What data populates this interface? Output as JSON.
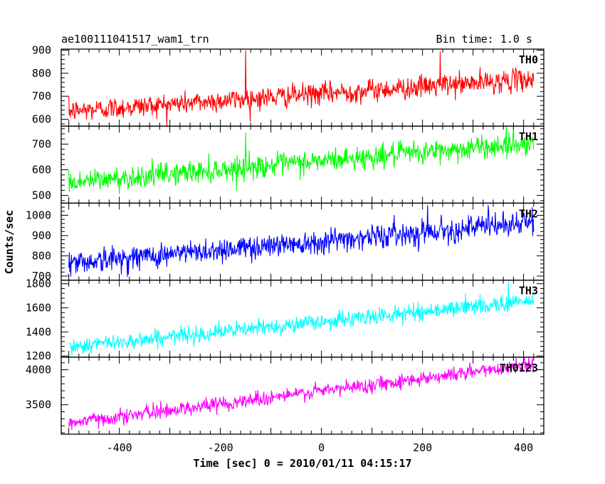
{
  "chart_data": {
    "type": "line",
    "title": "ae100111041517_wam1_trn",
    "subtitle": "Bin time: 1.0 s",
    "xlabel": "Time [sec] 0 = 2010/01/11 04:15:17",
    "ylabel": "Counts/sec",
    "xlim": [
      -515,
      440
    ],
    "xticks": [
      -400,
      -200,
      0,
      200,
      400
    ],
    "x_start": -500,
    "x_end": 420,
    "x_step": 1,
    "grid": false,
    "panels": [
      {
        "name": "TH0",
        "color": "#ff0000",
        "ylim": [
          570,
          905
        ],
        "yticks": [
          600,
          700,
          800,
          900
        ],
        "trend_start": 635,
        "trend_end": 775,
        "noise_amplitude": 32,
        "spikes": [
          {
            "x": -150,
            "y": 900
          },
          {
            "x": 235,
            "y": 895
          }
        ]
      },
      {
        "name": "TH1",
        "color": "#00ff00",
        "ylim": [
          470,
          770
        ],
        "yticks": [
          500,
          600,
          700
        ],
        "trend_start": 550,
        "trend_end": 705,
        "noise_amplitude": 30,
        "spikes": [
          {
            "x": -150,
            "y": 745
          },
          {
            "x": 380,
            "y": 765
          }
        ]
      },
      {
        "name": "TH2",
        "color": "#0000ff",
        "ylim": [
          680,
          1060
        ],
        "yticks": [
          700,
          800,
          900,
          1000
        ],
        "trend_start": 765,
        "trend_end": 965,
        "noise_amplitude": 40,
        "spikes": [
          {
            "x": 210,
            "y": 1050
          },
          {
            "x": 330,
            "y": 1050
          }
        ]
      },
      {
        "name": "TH3",
        "color": "#00ffff",
        "ylim": [
          1190,
          1830
        ],
        "yticks": [
          1200,
          1400,
          1600,
          1800
        ],
        "trend_start": 1275,
        "trend_end": 1660,
        "noise_amplitude": 45,
        "spikes": [
          {
            "x": 370,
            "y": 1820
          },
          {
            "x": 285,
            "y": 1720
          }
        ]
      },
      {
        "name": "TH0123",
        "color": "#ff00ff",
        "ylim": [
          3080,
          4180
        ],
        "yticks": [
          3500,
          4000
        ],
        "trend_start": 3240,
        "trend_end": 4080,
        "noise_amplitude": 70,
        "spikes": [
          {
            "x": -130,
            "y": 3700
          },
          {
            "x": 385,
            "y": 4170
          }
        ]
      }
    ]
  }
}
